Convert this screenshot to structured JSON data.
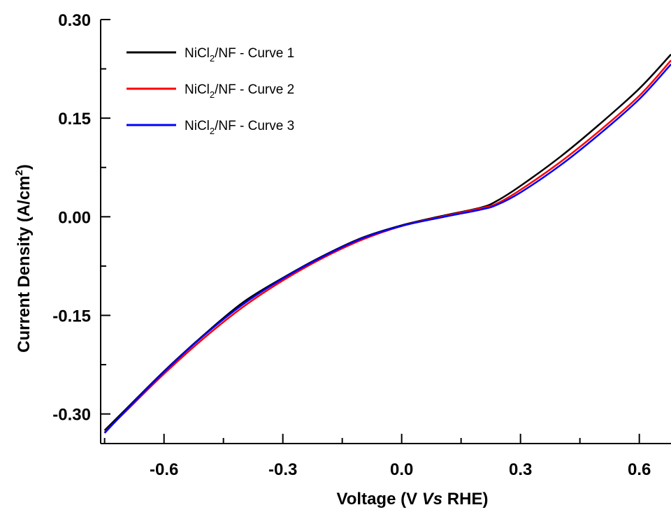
{
  "chart_data": {
    "type": "line",
    "xlabel": {
      "prefix": "Voltage (V ",
      "italic": "Vs",
      "suffix": " RHE)"
    },
    "ylabel": {
      "main": "Current Density (A/cm",
      "sup": "2",
      "close": ")"
    },
    "xlim": [
      -0.76,
      0.68
    ],
    "ylim": [
      -0.345,
      0.3
    ],
    "x_ticks": [
      -0.6,
      -0.3,
      0.0,
      0.3,
      0.6
    ],
    "x_tick_labels": [
      "-0.6",
      "-0.3",
      "0.0",
      "0.3",
      "0.6"
    ],
    "y_ticks": [
      -0.3,
      -0.15,
      0.0,
      0.15,
      0.3
    ],
    "y_tick_labels": [
      "-0.30",
      "-0.15",
      "0.00",
      "0.15",
      "0.30"
    ],
    "legend_position": "top-left",
    "series": [
      {
        "name": {
          "a": "NiCl",
          "sub": "2",
          "b": "/NF - Curve 1"
        },
        "color": "#000000",
        "x": [
          -0.75,
          -0.7,
          -0.6,
          -0.5,
          -0.4,
          -0.3,
          -0.2,
          -0.1,
          0.0,
          0.1,
          0.2,
          0.24,
          0.3,
          0.4,
          0.5,
          0.6,
          0.68
        ],
        "y": [
          -0.325,
          -0.295,
          -0.235,
          -0.18,
          -0.13,
          -0.093,
          -0.06,
          -0.032,
          -0.013,
          0.001,
          0.014,
          0.024,
          0.047,
          0.091,
          0.141,
          0.195,
          0.247
        ]
      },
      {
        "name": {
          "a": "NiCl",
          "sub": "2",
          "b": "/NF - Curve 2"
        },
        "color": "#ff0000",
        "x": [
          -0.75,
          -0.7,
          -0.6,
          -0.5,
          -0.4,
          -0.3,
          -0.2,
          -0.1,
          0.0,
          0.1,
          0.2,
          0.24,
          0.3,
          0.4,
          0.5,
          0.6,
          0.68
        ],
        "y": [
          -0.328,
          -0.298,
          -0.239,
          -0.185,
          -0.137,
          -0.097,
          -0.063,
          -0.035,
          -0.014,
          0.0,
          0.013,
          0.02,
          0.041,
          0.083,
          0.131,
          0.184,
          0.238
        ]
      },
      {
        "name": {
          "a": "NiCl",
          "sub": "2",
          "b": "/NF - Curve 3"
        },
        "color": "#0000ff",
        "x": [
          -0.75,
          -0.7,
          -0.6,
          -0.5,
          -0.4,
          -0.3,
          -0.2,
          -0.1,
          0.0,
          0.1,
          0.2,
          0.24,
          0.3,
          0.4,
          0.5,
          0.6,
          0.68
        ],
        "y": [
          -0.329,
          -0.297,
          -0.236,
          -0.181,
          -0.133,
          -0.094,
          -0.061,
          -0.033,
          -0.014,
          -0.001,
          0.011,
          0.018,
          0.037,
          0.078,
          0.126,
          0.179,
          0.232
        ]
      }
    ],
    "colors": {
      "axis": "#000000",
      "background": "#ffffff"
    }
  }
}
